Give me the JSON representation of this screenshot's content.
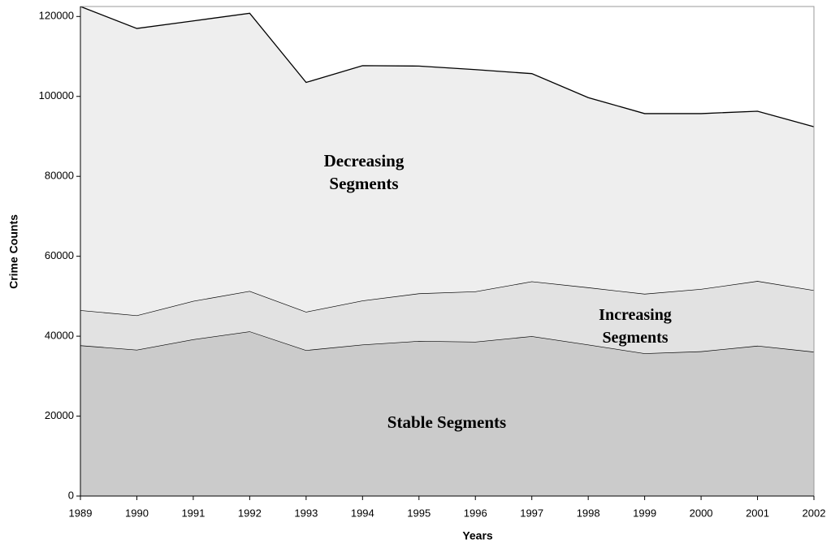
{
  "chart_data": {
    "type": "stacked_area",
    "x_label": "Years",
    "y_label": "Crime Counts",
    "categories": [
      "1989",
      "1990",
      "1991",
      "1992",
      "1993",
      "1994",
      "1995",
      "1996",
      "1997",
      "1998",
      "1999",
      "2000",
      "2001",
      "2002"
    ],
    "series": [
      {
        "name": "Stable Segments",
        "color": "#cbcbcb",
        "values": [
          37700,
          36600,
          39200,
          41200,
          36500,
          37900,
          38800,
          38600,
          40000,
          37900,
          35700,
          36200,
          37600,
          36100
        ]
      },
      {
        "name": "Increasing Segments",
        "color": "#e2e2e2",
        "values": [
          8800,
          8600,
          9600,
          10100,
          9600,
          11000,
          11900,
          12600,
          13700,
          14300,
          14900,
          15600,
          16200,
          15400
        ]
      },
      {
        "name": "Decreasing Segments",
        "color": "#eeeeee",
        "values": [
          76000,
          71800,
          70100,
          69500,
          57400,
          58800,
          56900,
          55500,
          52000,
          47500,
          45100,
          43900,
          42500,
          40900
        ]
      }
    ],
    "ylim": [
      0,
      122500
    ],
    "yticks": [
      0,
      20000,
      40000,
      60000,
      80000,
      100000,
      120000
    ]
  }
}
